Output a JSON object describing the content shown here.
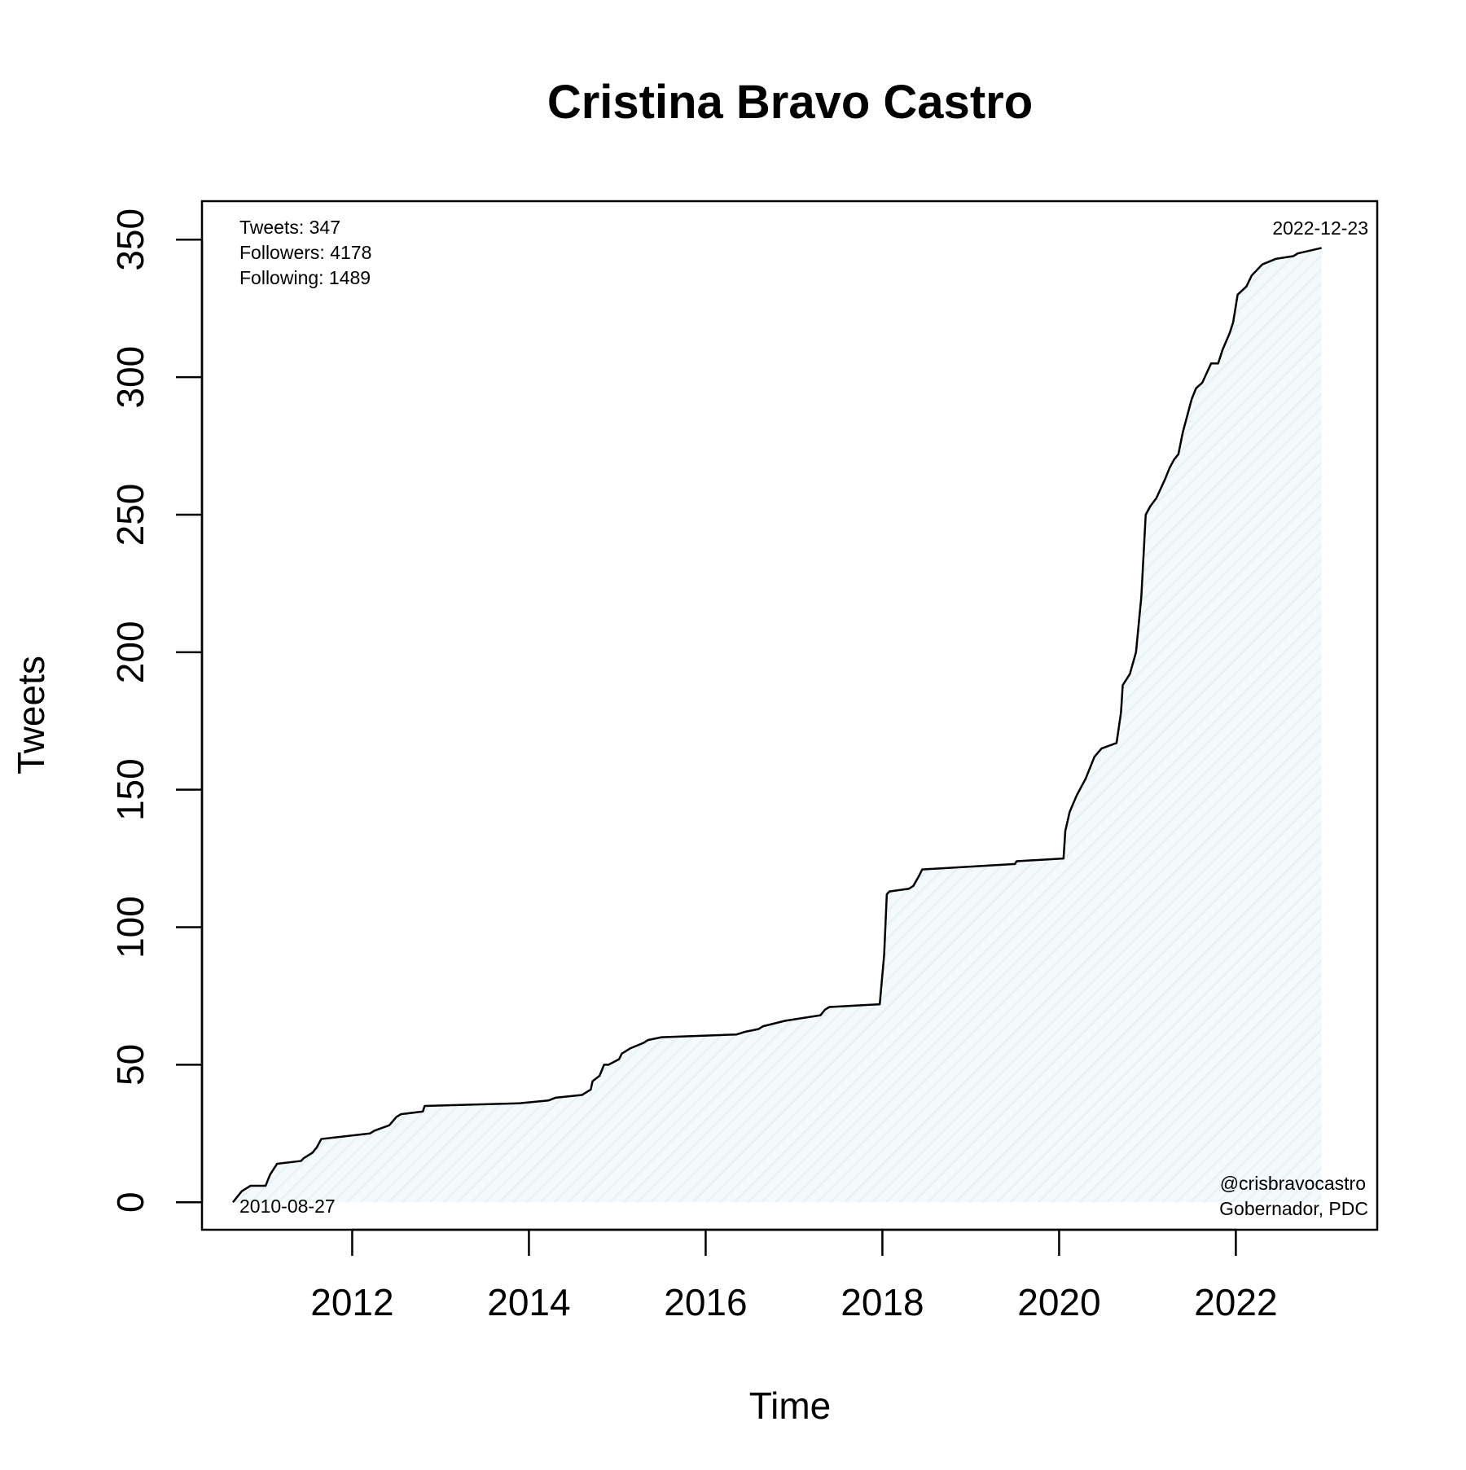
{
  "chart_data": {
    "type": "line",
    "title": "Cristina Bravo Castro",
    "xlabel": "Time",
    "ylabel": "Tweets",
    "x_ticks": [
      2012,
      2014,
      2016,
      2018,
      2020,
      2022
    ],
    "y_ticks": [
      0,
      50,
      100,
      150,
      200,
      250,
      300,
      350
    ],
    "xlim": [
      2010.3,
      2023.6
    ],
    "ylim": [
      -10,
      364
    ],
    "grid": false,
    "legend": "none",
    "colors": {
      "line": "#000000",
      "fill": "#e6f2f4",
      "hatch": "#f4fafb"
    },
    "stats": {
      "tweets": "Tweets: 347",
      "followers": "Followers: 4178",
      "following": "Following: 1489"
    },
    "start_label": "2010-08-27",
    "end_label": "2022-12-23",
    "handle": "@crisbravocastro",
    "role": "Gobernador, PDC",
    "series": [
      {
        "x": [
          2010.65,
          2010.75,
          2010.85,
          2011.02,
          2011.07,
          2011.15,
          2011.42,
          2011.45,
          2011.55,
          2011.6,
          2011.65,
          2012.2,
          2012.25,
          2012.42,
          2012.5,
          2012.55,
          2012.8,
          2012.82,
          2013.9,
          2014.22,
          2014.3,
          2014.6,
          2014.7,
          2014.72,
          2014.8,
          2014.85,
          2014.9,
          2015.02,
          2015.05,
          2015.1,
          2015.15,
          2015.3,
          2015.35,
          2015.5,
          2016.35,
          2016.45,
          2016.6,
          2016.65,
          2016.9,
          2017.3,
          2017.35,
          2017.4,
          2017.97,
          2018.02,
          2018.05,
          2018.08,
          2018.3,
          2018.35,
          2018.42,
          2018.45,
          2019.5,
          2019.52,
          2020.05,
          2020.07,
          2020.12,
          2020.2,
          2020.3,
          2020.35,
          2020.4,
          2020.48,
          2020.65,
          2020.7,
          2020.72,
          2020.8,
          2020.87,
          2020.93,
          2020.98,
          2021.03,
          2021.1,
          2021.2,
          2021.25,
          2021.3,
          2021.35,
          2021.4,
          2021.45,
          2021.5,
          2021.55,
          2021.62,
          2021.72,
          2021.8,
          2021.85,
          2021.93,
          2021.97,
          2022.02,
          2022.12,
          2022.18,
          2022.3,
          2022.45,
          2022.65,
          2022.7,
          2022.97
        ],
        "y": [
          0,
          4,
          6,
          6,
          10,
          14,
          15,
          16,
          18,
          20,
          23,
          25,
          26,
          28,
          31,
          32,
          33,
          35,
          36,
          37,
          38,
          39,
          41,
          44,
          46,
          50,
          50,
          52,
          54,
          55,
          56,
          58,
          59,
          60,
          61,
          62,
          63,
          64,
          66,
          68,
          70,
          71,
          72,
          90,
          112,
          113,
          114,
          115,
          119,
          121,
          123,
          124,
          125,
          135,
          142,
          148,
          154,
          158,
          162,
          165,
          167,
          178,
          188,
          192,
          200,
          220,
          250,
          253,
          256,
          263,
          267,
          270,
          272,
          280,
          286,
          292,
          296,
          298,
          305,
          305,
          310,
          316,
          320,
          330,
          333,
          337,
          341,
          343,
          344,
          345,
          347
        ]
      }
    ]
  }
}
